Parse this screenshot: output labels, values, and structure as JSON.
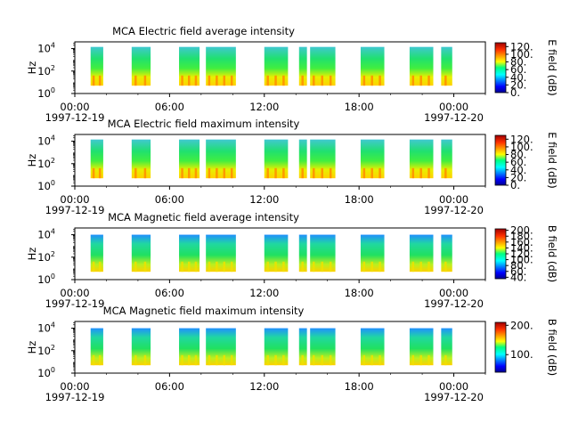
{
  "chart_data": [
    {
      "type": "heatmap",
      "title": "MCA  Electric field average intensity",
      "ylabel": "Hz",
      "yscale": "log",
      "y_ticks": [
        "10",
        "10",
        "10"
      ],
      "y_tick_exponents": [
        "0",
        "2",
        "4"
      ],
      "x_ticks": [
        "00:00",
        "06:00",
        "12:00",
        "18:00",
        "00:00"
      ],
      "x_date_start": "1997-12-19",
      "x_date_end": "1997-12-20",
      "colorbar_label": "E field (dB)",
      "colorbar_ticks": [
        "0.",
        "20.",
        "40.",
        "60.",
        "80.",
        "100.",
        "120."
      ],
      "colorbar_range": [
        0,
        130
      ],
      "data_intervals_hours": [
        [
          1.0,
          1.8
        ],
        [
          3.6,
          4.8
        ],
        [
          6.6,
          7.9
        ],
        [
          8.3,
          10.2
        ],
        [
          12.0,
          13.5
        ],
        [
          14.2,
          14.7
        ],
        [
          14.9,
          16.5
        ],
        [
          18.1,
          19.6
        ],
        [
          21.2,
          22.7
        ],
        [
          23.2,
          23.9
        ]
      ]
    },
    {
      "type": "heatmap",
      "title": "MCA  Electric field maximum intensity",
      "ylabel": "Hz",
      "yscale": "log",
      "y_ticks": [
        "10",
        "10",
        "10"
      ],
      "y_tick_exponents": [
        "0",
        "2",
        "4"
      ],
      "x_ticks": [
        "00:00",
        "06:00",
        "12:00",
        "18:00",
        "00:00"
      ],
      "x_date_start": "1997-12-19",
      "x_date_end": "1997-12-20",
      "colorbar_label": "E field (dB)",
      "colorbar_ticks": [
        "0.",
        "20.",
        "40.",
        "60.",
        "80.",
        "100.",
        "120."
      ],
      "colorbar_range": [
        0,
        130
      ],
      "data_intervals_hours": [
        [
          1.0,
          1.8
        ],
        [
          3.6,
          4.8
        ],
        [
          6.6,
          7.9
        ],
        [
          8.3,
          10.2
        ],
        [
          12.0,
          13.5
        ],
        [
          14.2,
          14.7
        ],
        [
          14.9,
          16.5
        ],
        [
          18.1,
          19.6
        ],
        [
          21.2,
          22.7
        ],
        [
          23.2,
          23.9
        ]
      ]
    },
    {
      "type": "heatmap",
      "title": "MCA  Magnetic field average intensity",
      "ylabel": "Hz",
      "yscale": "log",
      "y_ticks": [
        "10",
        "10",
        "10"
      ],
      "y_tick_exponents": [
        "0",
        "2",
        "4"
      ],
      "x_ticks": [
        "00:00",
        "06:00",
        "12:00",
        "18:00",
        "00:00"
      ],
      "x_date_start": "1997-12-19",
      "x_date_end": "1997-12-20",
      "colorbar_label": "B field (dB)",
      "colorbar_ticks": [
        "40.",
        "60.",
        "80.",
        "100.",
        "120.",
        "140.",
        "160.",
        "180.",
        "200."
      ],
      "colorbar_range": [
        35,
        205
      ],
      "data_intervals_hours": [
        [
          1.0,
          1.8
        ],
        [
          3.6,
          4.8
        ],
        [
          6.6,
          7.9
        ],
        [
          8.3,
          10.2
        ],
        [
          12.0,
          13.5
        ],
        [
          14.2,
          14.7
        ],
        [
          14.9,
          16.5
        ],
        [
          18.1,
          19.6
        ],
        [
          21.2,
          22.7
        ],
        [
          23.2,
          23.9
        ]
      ]
    },
    {
      "type": "heatmap",
      "title": "MCA  Magnetic field maximum intensity",
      "ylabel": "Hz",
      "yscale": "log",
      "y_ticks": [
        "10",
        "10",
        "10"
      ],
      "y_tick_exponents": [
        "0",
        "2",
        "4"
      ],
      "x_ticks": [
        "00:00",
        "06:00",
        "12:00",
        "18:00",
        "00:00"
      ],
      "x_date_start": "1997-12-19",
      "x_date_end": "1997-12-20",
      "colorbar_label": "B field (dB)",
      "colorbar_ticks": [
        "100.",
        "200."
      ],
      "colorbar_range": [
        40,
        210
      ],
      "data_intervals_hours": [
        [
          1.0,
          1.8
        ],
        [
          3.6,
          4.8
        ],
        [
          6.6,
          7.9
        ],
        [
          8.3,
          10.2
        ],
        [
          12.0,
          13.5
        ],
        [
          14.2,
          14.7
        ],
        [
          14.9,
          16.5
        ],
        [
          18.1,
          19.6
        ],
        [
          21.2,
          22.7
        ],
        [
          23.2,
          23.9
        ]
      ]
    }
  ]
}
